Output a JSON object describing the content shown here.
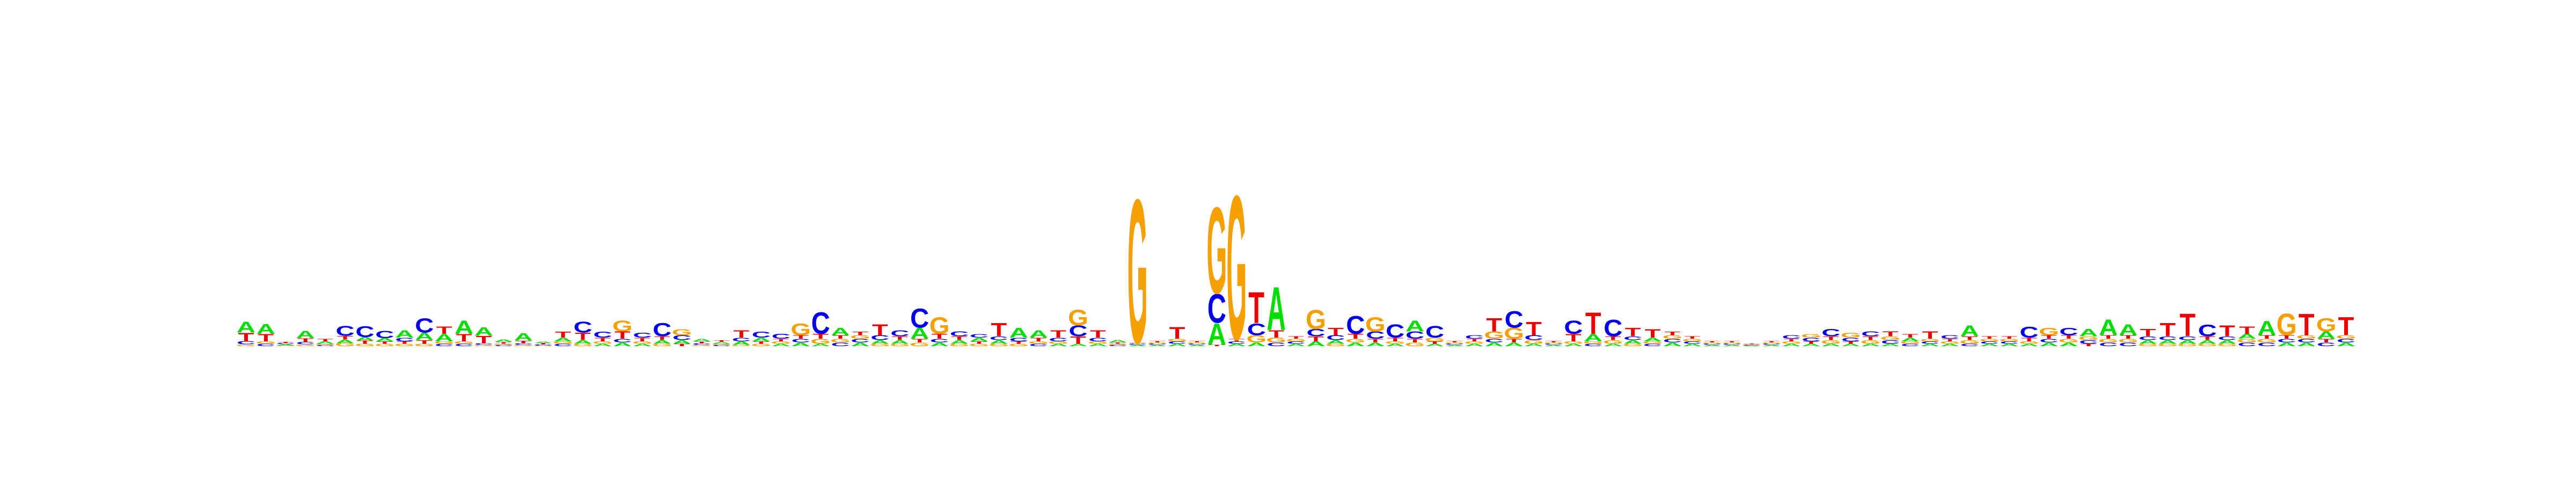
{
  "chart_data": {
    "type": "sequence-logo",
    "title": "",
    "xlabel": "",
    "ylabel": "",
    "alphabet": [
      "A",
      "C",
      "G",
      "T"
    ],
    "colors": {
      "A": "#00dd00",
      "C": "#0000ee",
      "G": "#f5a000",
      "T": "#ee0000"
    },
    "columns": [
      {
        "A": 0.9,
        "C": 0.25,
        "G": 0.15,
        "T": 0.7
      },
      {
        "A": 0.8,
        "C": 0.2,
        "G": 0.2,
        "T": 0.6
      },
      {
        "A": 0.1,
        "C": 0.1,
        "G": 0.05,
        "T": 0.1
      },
      {
        "A": 0.6,
        "C": 0.2,
        "G": 0.15,
        "T": 0.3
      },
      {
        "A": 0.2,
        "C": 0.1,
        "G": 0.1,
        "T": 0.2
      },
      {
        "A": 0.3,
        "C": 0.8,
        "G": 0.25,
        "T": 0.3
      },
      {
        "A": 0.3,
        "C": 0.9,
        "G": 0.2,
        "T": 0.25
      },
      {
        "A": 0.25,
        "C": 0.6,
        "G": 0.2,
        "T": 0.2
      },
      {
        "A": 0.6,
        "C": 0.3,
        "G": 0.2,
        "T": 0.2
      },
      {
        "A": 0.6,
        "C": 1.2,
        "G": 0.2,
        "T": 0.3
      },
      {
        "A": 0.6,
        "C": 0.2,
        "G": 0.2,
        "T": 0.6
      },
      {
        "A": 1.1,
        "C": 0.2,
        "G": 0.2,
        "T": 0.6
      },
      {
        "A": 0.7,
        "C": 0.15,
        "G": 0.1,
        "T": 0.6
      },
      {
        "A": 0.2,
        "C": 0.1,
        "G": 0.1,
        "T": 0.15
      },
      {
        "A": 0.6,
        "C": 0.15,
        "G": 0.1,
        "T": 0.2
      },
      {
        "A": 0.15,
        "C": 0.1,
        "G": 0.05,
        "T": 0.1
      },
      {
        "A": 0.3,
        "C": 0.2,
        "G": 0.2,
        "T": 0.5
      },
      {
        "A": 0.3,
        "C": 0.9,
        "G": 0.2,
        "T": 0.6
      },
      {
        "A": 0.2,
        "C": 0.5,
        "G": 0.2,
        "T": 0.3
      },
      {
        "A": 0.3,
        "C": 0.3,
        "G": 0.9,
        "T": 0.6
      },
      {
        "A": 0.2,
        "C": 0.4,
        "G": 0.2,
        "T": 0.3
      },
      {
        "A": 0.3,
        "C": 1.1,
        "G": 0.2,
        "T": 0.3
      },
      {
        "A": 0.3,
        "C": 0.4,
        "G": 0.5,
        "T": 0.2
      },
      {
        "A": 0.2,
        "C": 0.15,
        "G": 0.1,
        "T": 0.15
      },
      {
        "A": 0.15,
        "C": 0.1,
        "G": 0.1,
        "T": 0.15
      },
      {
        "A": 0.3,
        "C": 0.3,
        "G": 0.1,
        "T": 0.6
      },
      {
        "A": 0.3,
        "C": 0.5,
        "G": 0.2,
        "T": 0.2
      },
      {
        "A": 0.2,
        "C": 0.4,
        "G": 0.2,
        "T": 0.2
      },
      {
        "A": 0.3,
        "C": 0.3,
        "G": 1.0,
        "T": 0.3
      },
      {
        "A": 0.2,
        "C": 1.8,
        "G": 0.4,
        "T": 0.4
      },
      {
        "A": 0.6,
        "C": 0.3,
        "G": 0.3,
        "T": 0.3
      },
      {
        "A": 0.3,
        "C": 0.3,
        "G": 0.3,
        "T": 0.3
      },
      {
        "A": 0.3,
        "C": 0.4,
        "G": 0.2,
        "T": 0.9
      },
      {
        "A": 0.3,
        "C": 0.5,
        "G": 0.2,
        "T": 0.3
      },
      {
        "A": 0.9,
        "C": 1.6,
        "G": 0.3,
        "T": 0.3
      },
      {
        "A": 0.3,
        "C": 0.3,
        "G": 1.4,
        "T": 0.4
      },
      {
        "A": 0.3,
        "C": 0.4,
        "G": 0.2,
        "T": 0.3
      },
      {
        "A": 0.3,
        "C": 0.3,
        "G": 0.2,
        "T": 0.2
      },
      {
        "A": 0.3,
        "C": 0.3,
        "G": 0.2,
        "T": 1.1
      },
      {
        "A": 0.8,
        "C": 0.3,
        "G": 0.2,
        "T": 0.2
      },
      {
        "A": 0.6,
        "C": 0.2,
        "G": 0.2,
        "T": 0.3
      },
      {
        "A": 0.2,
        "C": 0.3,
        "G": 0.2,
        "T": 0.6
      },
      {
        "A": 0.2,
        "C": 0.9,
        "G": 1.3,
        "T": 0.6
      },
      {
        "A": 0.2,
        "C": 0.3,
        "G": 0.2,
        "T": 0.6
      },
      {
        "A": 0.2,
        "C": 0.1,
        "G": 0.1,
        "T": 0.1
      },
      {
        "A": 0.1,
        "C": 0.1,
        "G": 12.0,
        "T": 0.1
      },
      {
        "A": 0.1,
        "C": 0.1,
        "G": 0.1,
        "T": 0.1
      },
      {
        "A": 0.2,
        "C": 0.2,
        "G": 0.2,
        "T": 1.0
      },
      {
        "A": 0.1,
        "C": 0.1,
        "G": 0.1,
        "T": 0.1
      },
      {
        "A": 1.8,
        "C": 2.4,
        "G": 7.2,
        "T": 0.1
      },
      {
        "A": 0.2,
        "C": 0.2,
        "G": 12.0,
        "T": 0.2
      },
      {
        "A": 0.3,
        "C": 1.0,
        "G": 0.6,
        "T": 2.6
      },
      {
        "A": 3.6,
        "C": 0.3,
        "G": 0.4,
        "T": 0.6
      },
      {
        "A": 0.2,
        "C": 0.2,
        "G": 0.2,
        "T": 0.2
      },
      {
        "A": 0.4,
        "C": 0.6,
        "G": 1.6,
        "T": 0.4
      },
      {
        "A": 0.3,
        "C": 0.4,
        "G": 0.2,
        "T": 0.6
      },
      {
        "A": 0.3,
        "C": 1.5,
        "G": 0.3,
        "T": 0.4
      },
      {
        "A": 0.3,
        "C": 0.6,
        "G": 1.2,
        "T": 0.3
      },
      {
        "A": 0.2,
        "C": 1.1,
        "G": 0.2,
        "T": 0.3
      },
      {
        "A": 0.9,
        "C": 0.6,
        "G": 0.3,
        "T": 0.3
      },
      {
        "A": 0.2,
        "C": 1.0,
        "G": 0.3,
        "T": 0.2
      },
      {
        "A": 0.1,
        "C": 0.1,
        "G": 0.1,
        "T": 0.1
      },
      {
        "A": 0.2,
        "C": 0.3,
        "G": 0.2,
        "T": 0.2
      },
      {
        "A": 0.3,
        "C": 0.3,
        "G": 0.6,
        "T": 1.1
      },
      {
        "A": 0.3,
        "C": 1.4,
        "G": 0.9,
        "T": 0.3
      },
      {
        "A": 0.2,
        "C": 0.4,
        "G": 0.3,
        "T": 1.1
      },
      {
        "A": 0.1,
        "C": 0.1,
        "G": 0.1,
        "T": 0.1
      },
      {
        "A": 0.2,
        "C": 1.1,
        "G": 0.2,
        "T": 0.6
      },
      {
        "A": 0.6,
        "C": 0.2,
        "G": 0.2,
        "T": 1.8
      },
      {
        "A": 0.2,
        "C": 1.4,
        "G": 0.3,
        "T": 0.3
      },
      {
        "A": 0.3,
        "C": 0.3,
        "G": 0.2,
        "T": 0.7
      },
      {
        "A": 0.3,
        "C": 0.2,
        "G": 0.2,
        "T": 0.7
      },
      {
        "A": 0.3,
        "C": 0.3,
        "G": 0.3,
        "T": 0.3
      },
      {
        "A": 0.2,
        "C": 0.2,
        "G": 0.2,
        "T": 0.2
      },
      {
        "A": 0.1,
        "C": 0.1,
        "G": 0.1,
        "T": 0.1
      },
      {
        "A": 0.1,
        "C": 0.1,
        "G": 0.1,
        "T": 0.1
      },
      {
        "A": 0.05,
        "C": 0.05,
        "G": 0.05,
        "T": 0.05
      },
      {
        "A": 0.1,
        "C": 0.1,
        "G": 0.1,
        "T": 0.1
      },
      {
        "A": 0.2,
        "C": 0.3,
        "G": 0.2,
        "T": 0.2
      },
      {
        "A": 0.2,
        "C": 0.3,
        "G": 0.3,
        "T": 0.2
      },
      {
        "A": 0.2,
        "C": 0.6,
        "G": 0.3,
        "T": 0.3
      },
      {
        "A": 0.2,
        "C": 0.3,
        "G": 0.4,
        "T": 0.2
      },
      {
        "A": 0.2,
        "C": 0.4,
        "G": 0.3,
        "T": 0.3
      },
      {
        "A": 0.2,
        "C": 0.3,
        "G": 0.3,
        "T": 0.4
      },
      {
        "A": 0.3,
        "C": 0.2,
        "G": 0.2,
        "T": 0.3
      },
      {
        "A": 0.2,
        "C": 0.2,
        "G": 0.2,
        "T": 0.6
      },
      {
        "A": 0.2,
        "C": 0.3,
        "G": 0.2,
        "T": 0.2
      },
      {
        "A": 0.9,
        "C": 0.2,
        "G": 0.3,
        "T": 0.3
      },
      {
        "A": 0.2,
        "C": 0.2,
        "G": 0.2,
        "T": 0.2
      },
      {
        "A": 0.2,
        "C": 0.2,
        "G": 0.2,
        "T": 0.2
      },
      {
        "A": 0.2,
        "C": 0.9,
        "G": 0.2,
        "T": 0.3
      },
      {
        "A": 0.3,
        "C": 0.3,
        "G": 0.6,
        "T": 0.3
      },
      {
        "A": 0.3,
        "C": 0.6,
        "G": 0.3,
        "T": 0.3
      },
      {
        "A": 0.6,
        "C": 0.3,
        "G": 0.3,
        "T": 0.2
      },
      {
        "A": 1.3,
        "C": 0.3,
        "G": 0.3,
        "T": 0.3
      },
      {
        "A": 0.9,
        "C": 0.3,
        "G": 0.3,
        "T": 0.3
      },
      {
        "A": 0.3,
        "C": 0.3,
        "G": 0.2,
        "T": 0.6
      },
      {
        "A": 0.3,
        "C": 0.3,
        "G": 0.2,
        "T": 1.1
      },
      {
        "A": 0.3,
        "C": 0.3,
        "G": 0.2,
        "T": 1.9
      },
      {
        "A": 0.3,
        "C": 1.0,
        "G": 0.2,
        "T": 0.3
      },
      {
        "A": 0.3,
        "C": 0.3,
        "G": 0.2,
        "T": 0.9
      },
      {
        "A": 0.4,
        "C": 0.3,
        "G": 0.3,
        "T": 0.6
      },
      {
        "A": 1.2,
        "C": 0.3,
        "G": 0.3,
        "T": 0.3
      },
      {
        "A": 0.3,
        "C": 0.3,
        "G": 1.8,
        "T": 0.3
      },
      {
        "A": 0.3,
        "C": 0.3,
        "G": 0.3,
        "T": 1.8
      },
      {
        "A": 0.6,
        "C": 0.3,
        "G": 1.1,
        "T": 0.3
      },
      {
        "A": 0.3,
        "C": 0.3,
        "G": 0.3,
        "T": 1.5
      }
    ]
  }
}
